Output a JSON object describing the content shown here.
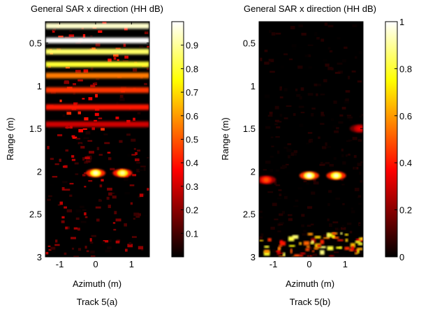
{
  "chart_data": [
    {
      "type": "heatmap",
      "title": "General SAR x direction (HH dB)",
      "xlabel": "Azimuth (m)",
      "ylabel": "Range (m)",
      "caption": "Track 5(a)",
      "xlim": [
        -1.4,
        1.5
      ],
      "ylim": [
        0.25,
        3.0
      ],
      "y_reversed": true,
      "xticks": [
        "-1",
        "0",
        "1"
      ],
      "xtick_values": [
        -1,
        0,
        1
      ],
      "yticks": [
        "0.5",
        "1",
        "1.5",
        "2",
        "2.5",
        "3"
      ],
      "ytick_values": [
        0.5,
        1,
        1.5,
        2,
        2.5,
        3
      ],
      "colormap": "hot",
      "colorbar": {
        "range": [
          0,
          1
        ],
        "ticks": [
          "0.1",
          "0.2",
          "0.3",
          "0.4",
          "0.5",
          "0.6",
          "0.7",
          "0.8",
          "0.9"
        ],
        "tick_values": [
          0.1,
          0.2,
          0.3,
          0.4,
          0.5,
          0.6,
          0.7,
          0.8,
          0.9
        ]
      },
      "features": [
        {
          "kind": "band",
          "range_m": 0.3,
          "intensity": 0.95
        },
        {
          "kind": "band",
          "range_m": 0.47,
          "intensity": 1.0
        },
        {
          "kind": "band",
          "range_m": 0.6,
          "intensity": 0.85
        },
        {
          "kind": "band",
          "range_m": 0.75,
          "intensity": 0.8
        },
        {
          "kind": "band",
          "range_m": 0.88,
          "intensity": 0.55
        },
        {
          "kind": "band",
          "range_m": 1.05,
          "intensity": 0.45
        },
        {
          "kind": "band",
          "range_m": 1.25,
          "intensity": 0.4
        },
        {
          "kind": "band",
          "range_m": 1.45,
          "intensity": 0.3
        },
        {
          "kind": "spot",
          "azimuth_m": 0.0,
          "range_m": 2.02,
          "intensity": 0.95
        },
        {
          "kind": "spot",
          "azimuth_m": 0.75,
          "range_m": 2.02,
          "intensity": 0.9
        }
      ]
    },
    {
      "type": "heatmap",
      "title": "General SAR x direction (HH dB)",
      "xlabel": "Azimuth (m)",
      "ylabel": "Range (m)",
      "caption": "Track 5(b)",
      "xlim": [
        -1.4,
        1.5
      ],
      "ylim": [
        0.25,
        3.0
      ],
      "y_reversed": true,
      "xticks": [
        "-1",
        "0",
        "1"
      ],
      "xtick_values": [
        -1,
        0,
        1
      ],
      "yticks": [
        "0.5",
        "1",
        "1.5",
        "2",
        "2.5",
        "3"
      ],
      "ytick_values": [
        0.5,
        1,
        1.5,
        2,
        2.5,
        3
      ],
      "colormap": "hot",
      "colorbar": {
        "range": [
          0,
          1
        ],
        "ticks": [
          "0",
          "0.2",
          "0.4",
          "0.6",
          "0.8",
          "1"
        ],
        "tick_values": [
          0,
          0.2,
          0.4,
          0.6,
          0.8,
          1
        ]
      },
      "features": [
        {
          "kind": "spot",
          "azimuth_m": 0.0,
          "range_m": 2.05,
          "intensity": 1.0
        },
        {
          "kind": "spot",
          "azimuth_m": 0.75,
          "range_m": 2.05,
          "intensity": 0.95
        },
        {
          "kind": "spot",
          "azimuth_m": -1.2,
          "range_m": 2.1,
          "intensity": 0.5
        },
        {
          "kind": "spot",
          "azimuth_m": 1.4,
          "range_m": 1.5,
          "intensity": 0.35
        },
        {
          "kind": "clutter",
          "range_from_m": 2.7,
          "range_to_m": 3.0,
          "intensity": 0.8
        }
      ]
    }
  ]
}
